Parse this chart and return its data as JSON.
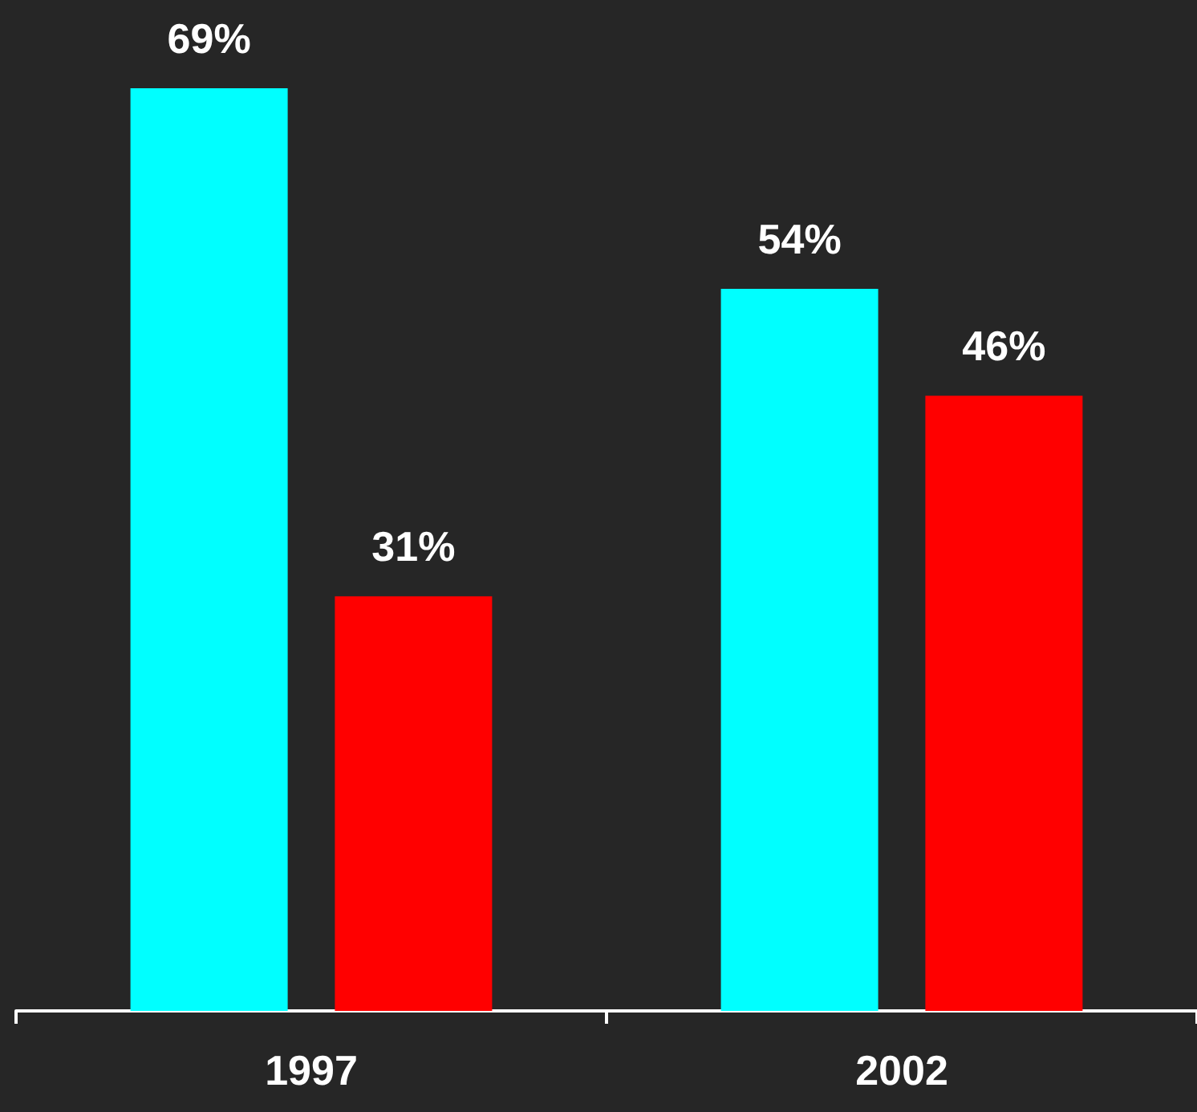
{
  "chart_data": {
    "type": "bar",
    "categories": [
      "1997",
      "2002"
    ],
    "series": [
      {
        "color": "#00ffff",
        "values": [
          69,
          54
        ],
        "value_labels": [
          "69%",
          "54%"
        ]
      },
      {
        "color": "#ff0000",
        "values": [
          31,
          46
        ],
        "value_labels": [
          "31%",
          "46%"
        ]
      }
    ]
  }
}
